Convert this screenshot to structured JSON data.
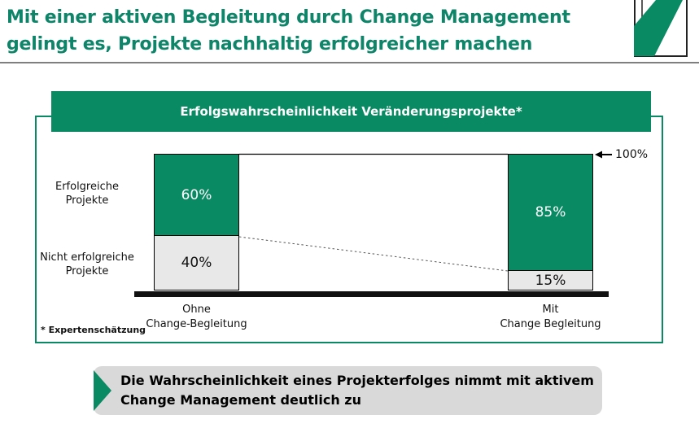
{
  "title": {
    "line1": "Mit einer aktiven Begleitung durch Change Management",
    "line2": "gelingt es, Projekte nachhaltig erfolgreicher machen"
  },
  "colors": {
    "accent": "#0a8a62",
    "title_green": "#0e8468",
    "bar_gray": "#e8e8e8",
    "callout_gray": "#d9d9d9",
    "baseline_black": "#111111"
  },
  "chart_data": {
    "type": "bar",
    "stacked": true,
    "title": "Erfolgswahrscheinlichkeit Veränderungsprojekte*",
    "categories": [
      [
        "Ohne",
        "Change-Begleitung"
      ],
      [
        "Mit",
        "Change Begleitung"
      ]
    ],
    "series": [
      {
        "name": "Erfolgreiche Projekte",
        "color": "#0a8a62",
        "values": [
          60,
          85
        ],
        "labels": [
          "60%",
          "85%"
        ]
      },
      {
        "name": "Nicht erfolgreiche Projekte",
        "color": "#e8e8e8",
        "values": [
          40,
          15
        ],
        "labels": [
          "40%",
          "15%"
        ]
      }
    ],
    "row_axis_labels": [
      [
        "Erfolgreiche",
        "Projekte"
      ],
      [
        "Nicht erfolgreiche",
        "Projekte"
      ]
    ],
    "ymax_annotation": "100%",
    "ylim": [
      0,
      100
    ],
    "grid": false,
    "legend": "none",
    "footnote": "* Expertenschätzung"
  },
  "callout": {
    "line1": "Die Wahrscheinlichkeit eines Projekterfolges nimmt mit aktivem",
    "line2": "Change Management deutlich zu"
  }
}
